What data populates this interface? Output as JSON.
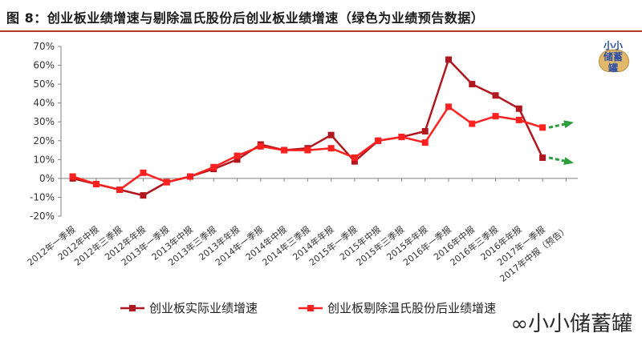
{
  "header": {
    "title": "图 8：创业板业绩增速与剔除温氏股份后创业板业绩增速（绿色为业绩预告数据）"
  },
  "watermark": {
    "text": "小小储蓄罐"
  },
  "logo": {
    "line1": "小小",
    "line2": "储蓄",
    "line3": "罐"
  },
  "colors": {
    "series1": "#b0171f",
    "series2": "#ff2020",
    "forecast_arrow": "#2e9d3d",
    "axis": "#808080"
  },
  "chart_data": {
    "type": "line",
    "ylim": [
      -20,
      70
    ],
    "y_ticks": [
      "-20%",
      "-10%",
      "0%",
      "10%",
      "20%",
      "30%",
      "40%",
      "50%",
      "60%",
      "70%"
    ],
    "categories": [
      "2012年一季报",
      "2012年中报",
      "2012年三季报",
      "2012年年报",
      "2013年一季报",
      "2013年中报",
      "2013年三季报",
      "2013年年报",
      "2014年一季报",
      "2014年中报",
      "2014年三季报",
      "2014年年报",
      "2015年一季报",
      "2015年中报",
      "2015年三季报",
      "2015年年报",
      "2016年一季报",
      "2016年中报",
      "2016年三季报",
      "2016年年报",
      "2017年一季报",
      "2017年中报（预告）"
    ],
    "series": [
      {
        "name": "创业板实际业绩增速",
        "values": [
          0,
          -3,
          -6,
          -9,
          -2,
          1,
          5,
          10,
          18,
          15,
          16,
          23,
          9,
          20,
          22,
          25,
          63,
          50,
          44,
          37,
          11,
          null
        ]
      },
      {
        "name": "创业板剔除温氏股份后业绩增速",
        "values": [
          1,
          -3,
          -6,
          3,
          -2,
          1,
          6,
          12,
          17,
          15,
          15,
          16,
          11,
          20,
          22,
          19,
          38,
          29,
          33,
          31,
          27,
          null
        ]
      }
    ],
    "legend_position": "bottom",
    "grid": false
  }
}
